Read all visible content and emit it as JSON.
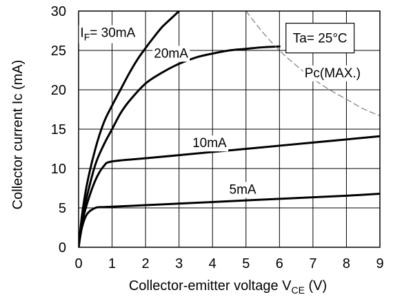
{
  "chart_data": {
    "type": "line",
    "title": "",
    "xlabel": "Collector-emitter voltage V",
    "xlabel_sub": "CE",
    "xlabel_unit": " (V)",
    "ylabel": "Collector current Ic (mA)",
    "xlim": [
      0,
      9
    ],
    "ylim": [
      0,
      30
    ],
    "xticks": [
      0,
      1,
      2,
      3,
      4,
      5,
      6,
      7,
      8,
      9
    ],
    "yticks": [
      0,
      5,
      10,
      15,
      20,
      25,
      30
    ],
    "grid": true,
    "condition_label": "Ta= 25°C",
    "series": [
      {
        "name": "I_F = 30mA",
        "label": "I",
        "label_sub": "F",
        "label_rest": "= 30mA",
        "style": "solid",
        "x": [
          0,
          0.1,
          0.25,
          0.5,
          0.75,
          1.0,
          1.25,
          1.5,
          1.75,
          2.0,
          2.25,
          2.5,
          2.75,
          3.0
        ],
        "y": [
          0,
          4,
          8,
          12.5,
          15.8,
          18.0,
          20.0,
          22.0,
          23.8,
          25.3,
          26.7,
          28.0,
          29.0,
          30.0
        ]
      },
      {
        "name": "20mA",
        "label": "20mA",
        "style": "solid",
        "x": [
          0,
          0.1,
          0.25,
          0.5,
          0.75,
          1.0,
          1.25,
          1.5,
          2.0,
          2.5,
          3.0,
          3.5,
          4.0,
          4.5,
          5.0,
          5.5,
          6.0
        ],
        "y": [
          0,
          3.5,
          6.5,
          10.5,
          13.0,
          15.0,
          17.0,
          18.5,
          20.8,
          22.2,
          23.3,
          24.1,
          24.6,
          25.0,
          25.2,
          25.4,
          25.5
        ]
      },
      {
        "name": "10mA",
        "label": "10mA",
        "style": "solid",
        "x": [
          0,
          0.1,
          0.25,
          0.5,
          0.75,
          1.0,
          2.0,
          3.0,
          4.0,
          5.0,
          6.0,
          7.0,
          8.0,
          9.0
        ],
        "y": [
          0,
          3.0,
          5.5,
          8.5,
          10.3,
          10.9,
          11.3,
          11.7,
          12.1,
          12.5,
          12.9,
          13.3,
          13.7,
          14.1
        ]
      },
      {
        "name": "5mA",
        "label": "5mA",
        "style": "solid",
        "x": [
          0,
          0.1,
          0.25,
          0.5,
          0.75,
          1.0,
          2.0,
          3.0,
          4.0,
          5.0,
          6.0,
          7.0,
          8.0,
          9.0
        ],
        "y": [
          0,
          2.5,
          4.2,
          5.0,
          5.1,
          5.15,
          5.35,
          5.55,
          5.75,
          5.95,
          6.15,
          6.35,
          6.55,
          6.8
        ]
      },
      {
        "name": "Pc(MAX.)",
        "label": "Pc(MAX.)",
        "style": "dashed",
        "x": [
          5.0,
          5.5,
          6.0,
          6.5,
          7.0,
          7.5,
          8.0,
          8.5,
          9.0
        ],
        "y": [
          30.0,
          27.3,
          25.0,
          23.1,
          21.4,
          20.0,
          18.8,
          17.6,
          16.7
        ]
      }
    ],
    "label_positions": [
      {
        "series": 0,
        "x": 0.05,
        "y": 26.7
      },
      {
        "series": 1,
        "x": 2.25,
        "y": 24.1
      },
      {
        "series": 2,
        "x": 3.4,
        "y": 12.7
      },
      {
        "series": 3,
        "x": 4.5,
        "y": 6.8
      },
      {
        "series": 4,
        "x": 6.75,
        "y": 21.6
      }
    ]
  }
}
